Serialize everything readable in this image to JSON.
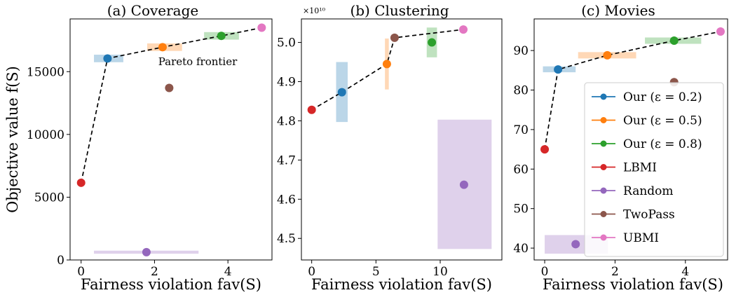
{
  "chart_data": [
    {
      "type": "scatter",
      "title": "(a) Coverage",
      "xlabel": "Fairness violation fav(S)",
      "ylabel": "Objective value f(S)",
      "xlim": [
        -0.3,
        5.2
      ],
      "ylim": [
        0,
        19200
      ],
      "xticks": [
        0,
        2,
        4
      ],
      "yticks": [
        0,
        5000,
        10000,
        15000
      ],
      "ytick_labels": [
        "0",
        "5000",
        "10000",
        "15000"
      ],
      "exponent_label": "",
      "annotation": "Pareto frontier",
      "pareto": [
        "LBMI",
        "Our (ε = 0.2)",
        "Our (ε = 0.5)",
        "Our (ε = 0.8)",
        "UBMI"
      ],
      "series": [
        {
          "name": "Our (ε = 0.2)",
          "color": "#1f77b4",
          "x": 0.72,
          "y": 16050,
          "x_range": [
            0.35,
            1.15
          ],
          "y_range": [
            15750,
            16350
          ]
        },
        {
          "name": "Our (ε = 0.5)",
          "color": "#ff7f0e",
          "x": 2.22,
          "y": 16950,
          "x_range": [
            1.8,
            2.75
          ],
          "y_range": [
            16650,
            17250
          ]
        },
        {
          "name": "Our (ε = 0.8)",
          "color": "#2ca02c",
          "x": 3.82,
          "y": 17850,
          "x_range": [
            3.35,
            4.3
          ],
          "y_range": [
            17550,
            18150
          ]
        },
        {
          "name": "LBMI",
          "color": "#d62728",
          "x": 0.0,
          "y": 6150
        },
        {
          "name": "Random",
          "color": "#9467bd",
          "x": 1.78,
          "y": 620,
          "x_range": [
            0.35,
            3.2
          ],
          "y_range": [
            500,
            740
          ]
        },
        {
          "name": "TwoPass",
          "color": "#8c564b",
          "x": 2.4,
          "y": 13700
        },
        {
          "name": "UBMI",
          "color": "#e377c2",
          "x": 4.92,
          "y": 18500
        }
      ]
    },
    {
      "type": "scatter",
      "title": "(b) Clustering",
      "xlabel": "Fairness violation fav(S)",
      "ylabel": "",
      "xlim": [
        -0.8,
        14.8
      ],
      "ylim": [
        4.445,
        5.06
      ],
      "xticks": [
        0,
        5,
        10
      ],
      "yticks": [
        4.5,
        4.6,
        4.7,
        4.8,
        4.9,
        5.0
      ],
      "ytick_labels": [
        "4.5",
        "4.6",
        "4.7",
        "4.8",
        "4.9",
        "5.0"
      ],
      "exponent_label": "×10¹⁰",
      "annotation": "",
      "pareto": [
        "LBMI",
        "Our (ε = 0.2)",
        "Our (ε = 0.5)",
        "TwoPass",
        "UBMI"
      ],
      "series": [
        {
          "name": "Our (ε = 0.2)",
          "color": "#1f77b4",
          "x": 2.35,
          "y": 4.873,
          "x_range": [
            1.9,
            2.8
          ],
          "y_range": [
            4.797,
            4.95
          ]
        },
        {
          "name": "Our (ε = 0.5)",
          "color": "#ff7f0e",
          "x": 5.85,
          "y": 4.945,
          "x_range": [
            5.7,
            6.0
          ],
          "y_range": [
            4.88,
            5.01
          ]
        },
        {
          "name": "Our (ε = 0.8)",
          "color": "#2ca02c",
          "x": 9.35,
          "y": 5.0,
          "x_range": [
            8.95,
            9.75
          ],
          "y_range": [
            4.962,
            5.038
          ]
        },
        {
          "name": "LBMI",
          "color": "#d62728",
          "x": 0.0,
          "y": 4.828
        },
        {
          "name": "Random",
          "color": "#9467bd",
          "x": 11.85,
          "y": 4.637,
          "x_range": [
            9.8,
            14.0
          ],
          "y_range": [
            4.473,
            4.803
          ]
        },
        {
          "name": "TwoPass",
          "color": "#8c564b",
          "x": 6.45,
          "y": 5.012
        },
        {
          "name": "UBMI",
          "color": "#e377c2",
          "x": 11.8,
          "y": 5.033
        }
      ]
    },
    {
      "type": "scatter",
      "title": "(c) Movies",
      "xlabel": "Fairness violation fav(S)",
      "ylabel": "",
      "xlim": [
        -0.3,
        5.2
      ],
      "ylim": [
        37,
        98
      ],
      "xticks": [
        0,
        2,
        4
      ],
      "yticks": [
        40,
        50,
        60,
        70,
        80,
        90
      ],
      "ytick_labels": [
        "40",
        "50",
        "60",
        "70",
        "80",
        "90"
      ],
      "exponent_label": "",
      "annotation": "",
      "pareto": [
        "LBMI",
        "Our (ε = 0.2)",
        "Our (ε = 0.5)",
        "Our (ε = 0.8)",
        "UBMI"
      ],
      "series": [
        {
          "name": "Our (ε = 0.2)",
          "color": "#1f77b4",
          "x": 0.38,
          "y": 85.2,
          "x_range": [
            -0.05,
            0.88
          ],
          "y_range": [
            84.5,
            86.0
          ]
        },
        {
          "name": "Our (ε = 0.5)",
          "color": "#ff7f0e",
          "x": 1.78,
          "y": 88.8,
          "x_range": [
            0.95,
            2.6
          ],
          "y_range": [
            88.0,
            89.6
          ]
        },
        {
          "name": "Our (ε = 0.8)",
          "color": "#2ca02c",
          "x": 3.68,
          "y": 92.5,
          "x_range": [
            2.85,
            4.45
          ],
          "y_range": [
            91.7,
            93.3
          ]
        },
        {
          "name": "LBMI",
          "color": "#d62728",
          "x": 0.0,
          "y": 65.0
        },
        {
          "name": "Random",
          "color": "#9467bd",
          "x": 0.88,
          "y": 41.0,
          "x_range": [
            0.0,
            1.8
          ],
          "y_range": [
            38.6,
            43.3
          ]
        },
        {
          "name": "TwoPass",
          "color": "#8c564b",
          "x": 3.68,
          "y": 82.0
        },
        {
          "name": "UBMI",
          "color": "#e377c2",
          "x": 5.0,
          "y": 94.8
        }
      ]
    }
  ],
  "legend": {
    "placement": "lower-right of panel (c)",
    "entries": [
      {
        "label": "Our (ε = 0.2)",
        "color": "#1f77b4"
      },
      {
        "label": "Our (ε = 0.5)",
        "color": "#ff7f0e"
      },
      {
        "label": "Our (ε = 0.8)",
        "color": "#2ca02c"
      },
      {
        "label": "LBMI",
        "color": "#d62728"
      },
      {
        "label": "Random",
        "color": "#9467bd"
      },
      {
        "label": "TwoPass",
        "color": "#8c564b"
      },
      {
        "label": "UBMI",
        "color": "#e377c2"
      }
    ]
  }
}
